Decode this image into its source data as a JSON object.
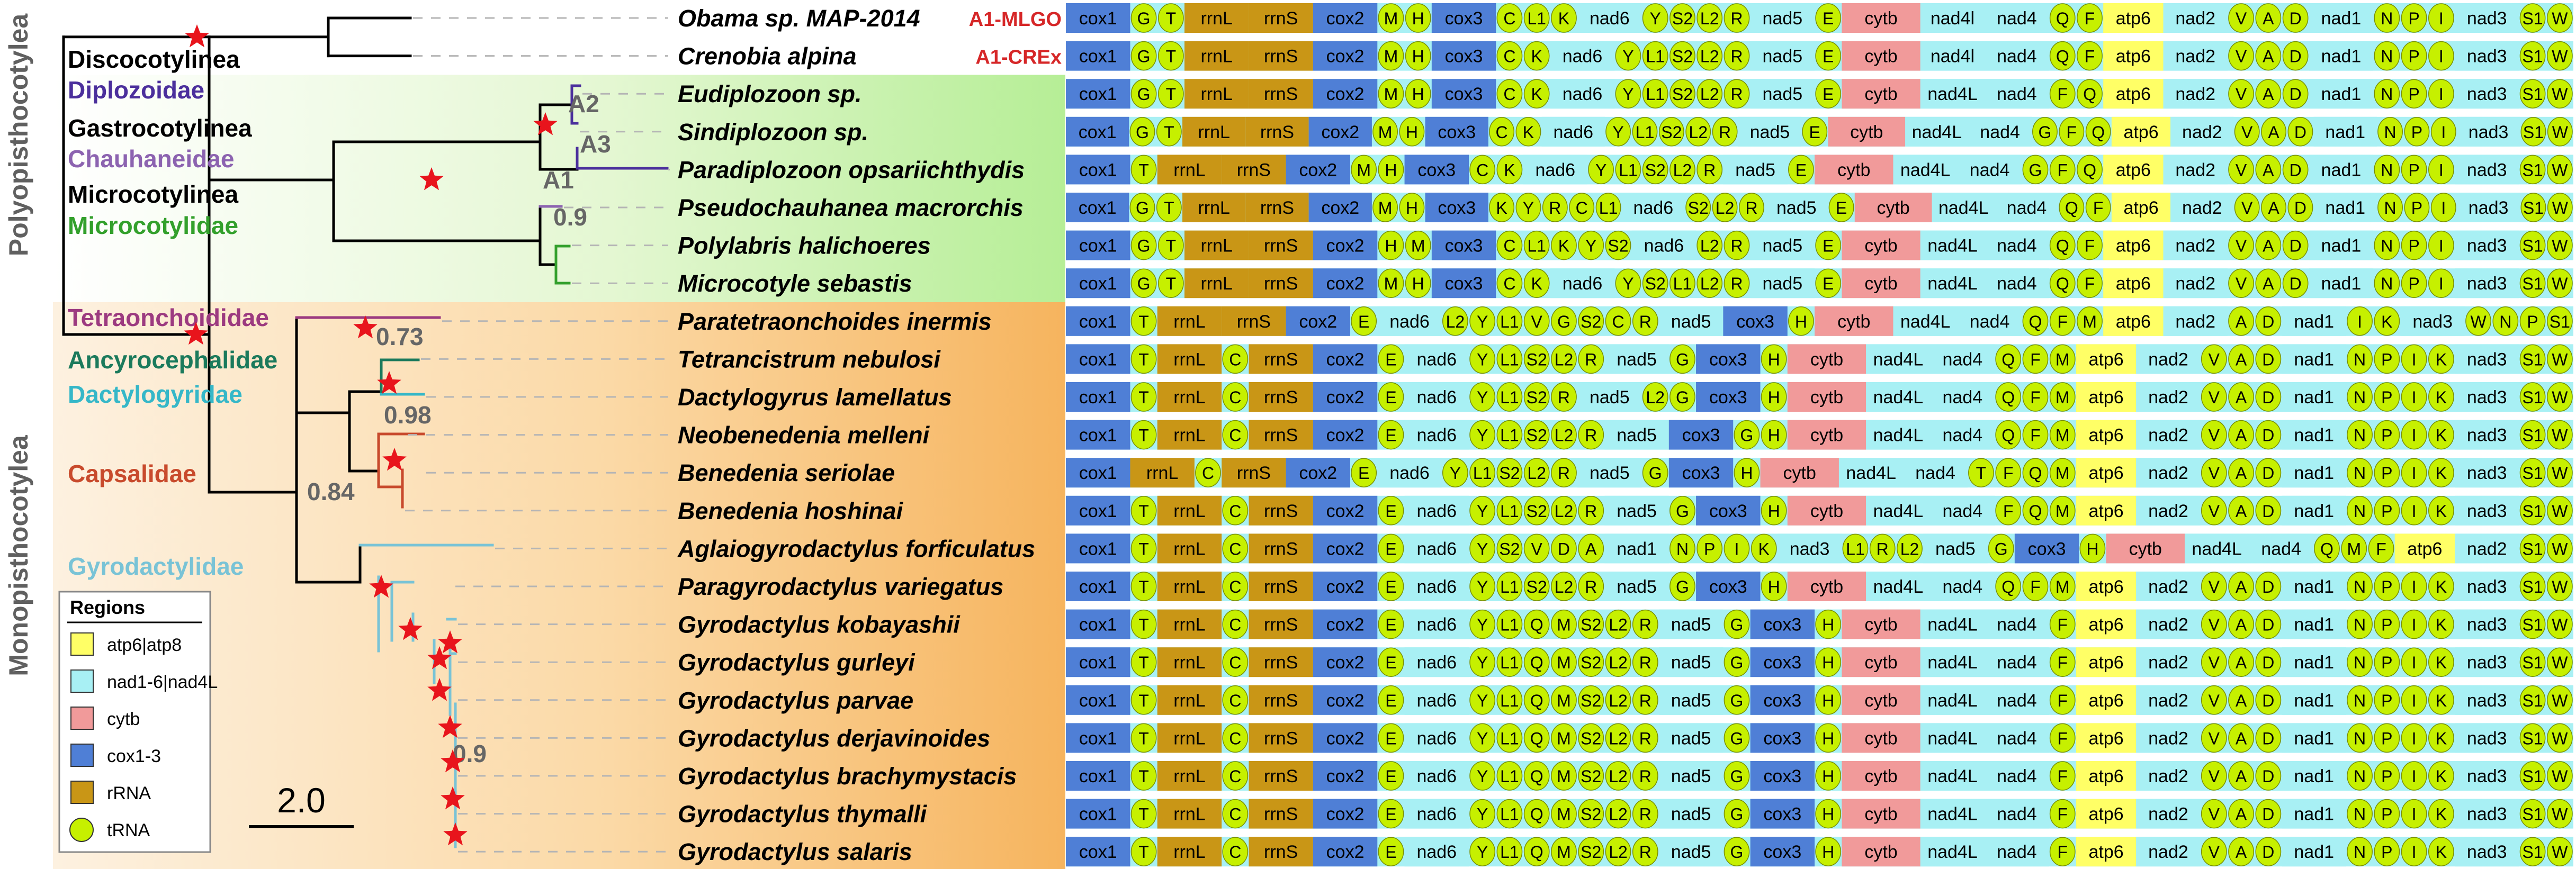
{
  "side_labels": {
    "top": "Polyopisthocotylea",
    "bottom": "Monopisthocotylea"
  },
  "clades": [
    {
      "id": "discocotylinea",
      "label": "Discocotylinea",
      "color": "#000000"
    },
    {
      "id": "diplozoidae",
      "label": "Diplozoidae",
      "color": "#4b2f9c"
    },
    {
      "id": "gastrocotylinea",
      "label": "Gastrocotylinea",
      "color": "#000000"
    },
    {
      "id": "chauhaneidae",
      "label": "Chauhaneidae",
      "color": "#8c63b0"
    },
    {
      "id": "microcotylinea",
      "label": "Microcotylinea",
      "color": "#000000"
    },
    {
      "id": "microcotylidae",
      "label": "Microcotylidae",
      "color": "#33a02c"
    },
    {
      "id": "tetraonchoididae",
      "label": "Tetraonchoididae",
      "color": "#9c3a80"
    },
    {
      "id": "ancyrocephalidae",
      "label": "Ancyrocephalidae",
      "color": "#1b7a5c"
    },
    {
      "id": "dactylogyridae",
      "label": "Dactylogyridae",
      "color": "#35b7c8"
    },
    {
      "id": "capsalidae",
      "label": "Capsalidae",
      "color": "#c84a2c"
    },
    {
      "id": "gyrodactylidae",
      "label": "Gyrodactylidae",
      "color": "#79c3d6"
    }
  ],
  "node_labels": [
    "A2",
    "A3",
    "A1",
    "0.9",
    "0.73",
    "0.98",
    "0.84",
    "0.9"
  ],
  "arrangement_tags": [
    {
      "label": "A1-MLGO",
      "color": "#d62728"
    },
    {
      "label": "A1-CREx",
      "color": "#d62728"
    }
  ],
  "taxa": [
    "Obama sp. MAP-2014",
    "Crenobia alpina",
    "Eudiplozoon sp.",
    "Sindiplozoon sp.",
    "Paradiplozoon opsariichthydis",
    "Pseudochauhanea macrorchis",
    "Polylabris halichoeres",
    "Microcotyle sebastis",
    "Paratetraonchoides inermis",
    "Tetrancistrum nebulosi",
    "Dactylogyrus lamellatus",
    "Neobenedenia melleni",
    "Benedenia seriolae",
    "Benedenia hoshinai",
    "Aglaiogyrodactylus forficulatus",
    "Paragyrodactylus variegatus",
    "Gyrodactylus kobayashii",
    "Gyrodactylus gurleyi",
    "Gyrodactylus parvae",
    "Gyrodactylus derjavinoides",
    "Gyrodactylus brachymystacis",
    "Gyrodactylus thymalli",
    "Gyrodactylus salaris"
  ],
  "gene_orders": [
    "cox1 G T rrnL rrnS cox2 M H cox3 C L1 K nad6 Y S2 L2 R nad5 E cytb nad4l nad4 Q F atp6 nad2 V A D nad1 N P I nad3 S1 W",
    "cox1 G T rrnL rrnS cox2 M H cox3 C K nad6 Y L1 S2 L2 R nad5 E cytb nad4l nad4 Q F atp6 nad2 V A D nad1 N P I nad3 S1 W",
    "cox1 G T rrnL rrnS cox2 M H cox3 C K nad6 Y L1 S2 L2 R nad5 E cytb nad4L nad4 F Q atp6 nad2 V A D nad1 N P I nad3 S1 W",
    "cox1 G T rrnL rrnS cox2 M H cox3 C K nad6 Y L1 S2 L2 R nad5 E cytb nad4L nad4 G F Q atp6 nad2 V A D nad1 N P I nad3 S1 W",
    "cox1 T rrnL rrnS cox2 M H cox3 C K nad6 Y L1 S2 L2 R nad5 E cytb nad4L nad4 G F Q atp6 nad2 V A D nad1 N P I nad3 S1 W",
    "cox1 G T rrnL rrnS cox2 M H cox3 K Y R C L1 nad6 S2 L2 R nad5 E cytb nad4L nad4 Q F atp6 nad2 V A D nad1 N P I nad3 S1 W",
    "cox1 G T rrnL rrnS cox2 H M cox3 C L1 K Y S2 nad6 L2 R nad5 E cytb nad4L nad4 Q F atp6 nad2 V A D nad1 N P I nad3 S1 W",
    "cox1 G T rrnL rrnS cox2 M H cox3 C K nad6 Y S2 L1 L2 R nad5 E cytb nad4L nad4 Q F atp6 nad2 V A D nad1 N P I nad3 S1 W",
    "cox1 T rrnL rrnS cox2 E nad6 L2 Y L1 V G S2 C R nad5 cox3 H cytb nad4L nad4 Q F M atp6 nad2 A D nad1 I K nad3 W N P S1",
    "cox1 T rrnL C rrnS cox2 E nad6 Y L1 S2 L2 R nad5 G cox3 H cytb nad4L nad4 Q F M atp6 nad2 V A D nad1 N P I K nad3 S1 W",
    "cox1 T rrnL C rrnS cox2 E nad6 Y L1 S2 R nad5 L2 G cox3 H cytb nad4L nad4 Q F M atp6 nad2 V A D nad1 N P I K nad3 S1 W",
    "cox1 T rrnL C rrnS cox2 E nad6 Y L1 S2 L2 R nad5 cox3 G H cytb nad4L nad4 Q F M atp6 nad2 V A D nad1 N P I K nad3 S1 W",
    "cox1 rrnL C rrnS cox2 E nad6 Y L1 S2 L2 R nad5 G cox3 H cytb nad4L nad4 T F Q M atp6 nad2 V A D nad1 N P I K nad3 S1 W",
    "cox1 T rrnL C rrnS cox2 E nad6 Y L1 S2 L2 R nad5 G cox3 H cytb nad4L nad4 F Q M atp6 nad2 V A D nad1 N P I K nad3 S1 W",
    "cox1 T rrnL C rrnS cox2 E nad6 Y S2 V D A nad1 N P I K nad3 L1 R L2 nad5 G cox3 H cytb nad4L nad4 Q M F atp6 nad2 S1 W",
    "cox1 T rrnL C rrnS cox2 E nad6 Y L1 S2 L2 R nad5 G cox3 H cytb nad4L nad4 Q F M atp6 nad2 V A D nad1 N P I K nad3 S1 W",
    "cox1 T rrnL C rrnS cox2 E nad6 Y L1 Q M S2 L2 R nad5 G cox3 H cytb nad4L nad4 F atp6 nad2 V A D nad1 N P I K nad3 S1 W",
    "cox1 T rrnL C rrnS cox2 E nad6 Y L1 Q M S2 L2 R nad5 G cox3 H cytb nad4L nad4 F atp6 nad2 V A D nad1 N P I K nad3 S1 W",
    "cox1 T rrnL C rrnS cox2 E nad6 Y L1 Q M S2 L2 R nad5 G cox3 H cytb nad4L nad4 F atp6 nad2 V A D nad1 N P I K nad3 S1 W",
    "cox1 T rrnL C rrnS cox2 E nad6 Y L1 Q M S2 L2 R nad5 G cox3 H cytb nad4L nad4 F atp6 nad2 V A D nad1 N P I K nad3 S1 W",
    "cox1 T rrnL C rrnS cox2 E nad6 Y L1 Q M S2 L2 R nad5 G cox3 H cytb nad4L nad4 F atp6 nad2 V A D nad1 N P I K nad3 S1 W",
    "cox1 T rrnL C rrnS cox2 E nad6 Y L1 Q M S2 L2 R nad5 G cox3 H cytb nad4L nad4 F atp6 nad2 V A D nad1 N P I K nad3 S1 W",
    "cox1 T rrnL C rrnS cox2 E nad6 Y L1 Q M S2 L2 R nad5 G cox3 H cytb nad4L nad4 F atp6 nad2 V A D nad1 N P I K nad3 S1 W"
  ],
  "legend": {
    "title": "Regions",
    "items": [
      {
        "label": "atp6|atp8",
        "color": "#ffff66"
      },
      {
        "label": "nad1-6|nad4L",
        "color": "#a8f0f4"
      },
      {
        "label": "cytb",
        "color": "#f19a9a"
      },
      {
        "label": "cox1-3",
        "color": "#4f7fd6"
      },
      {
        "label": "rRNA",
        "color": "#c99616"
      },
      {
        "label": "tRNA",
        "color": "#c6f000"
      }
    ]
  },
  "scale_bar": {
    "label": "2.0"
  },
  "colors": {
    "trna": "#c6f000",
    "rrna": "#c99616",
    "cox": "#4f7fd6",
    "cytb": "#f19a9a",
    "atp": "#ffff66",
    "nad": "#a8f0f4",
    "star": "#e8141c",
    "poly_bg": "#c4f2a8",
    "mono_bg": "#f7bb6e"
  }
}
